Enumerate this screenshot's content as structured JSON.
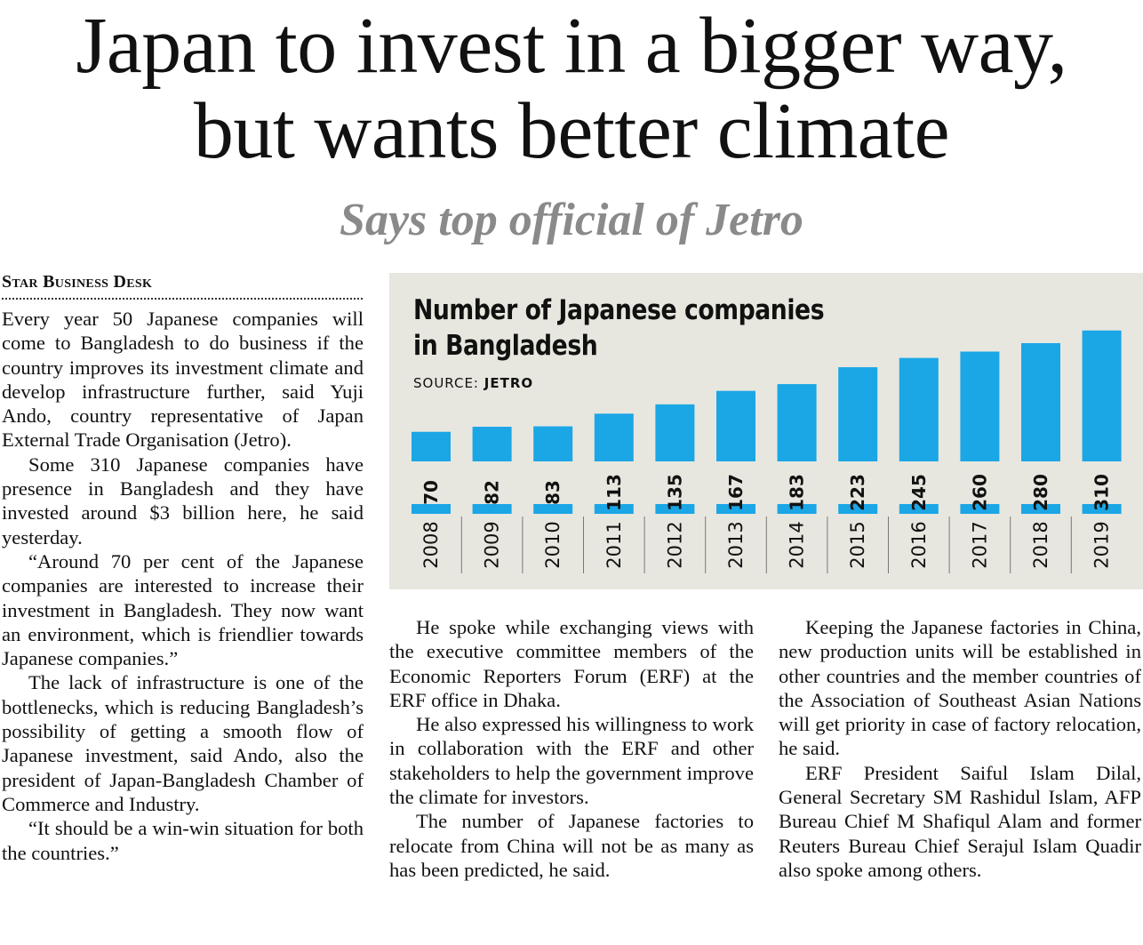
{
  "headline": {
    "line1": "Japan to invest in a bigger way,",
    "line2": "but wants better climate"
  },
  "subhead": "Says top official of Jetro",
  "byline": "Star Business Desk",
  "columns": {
    "col1": [
      "Every year 50 Japanese companies will come to Bangladesh to do business if the country improves its investment climate and develop infrastructure further, said Yuji Ando, country representative of Japan External Trade Organisation (Jetro).",
      "Some 310 Japanese companies have presence in Bangladesh and they have invested around $3 billion here, he said yesterday.",
      "“Around 70 per cent of the Japanese companies are interested to increase their investment in Bangladesh. They now want an environment, which is friendlier towards Japanese companies.”",
      "The lack of infrastructure is one of the bottlenecks, which is reducing Bangladesh’s possibility of getting a smooth flow of Japanese investment, said Ando, also the president of Japan-Bangladesh Chamber of Commerce and Industry.",
      "“It should be a win-win situation for both the countries.”"
    ],
    "col2": [
      "He spoke while exchanging views with the executive committee members of the Economic Reporters Forum (ERF) at the ERF office in Dhaka.",
      "He also expressed his willingness to work in collaboration with the ERF and other stakeholders to help the government improve the climate for investors.",
      "The number of Japanese factories to relocate from China will not be as many as has been predicted, he said."
    ],
    "col3": [
      "Keeping the Japanese factories in China, new production units will be established in other countries and the member countries of the Association of Southeast Asian Nations will get priority in case of factory relocation, he said.",
      "ERF President Saiful Islam Dilal, General Secretary SM Rashidul Islam, AFP Bureau Chief M Shafiqul Alam and former Reuters Bureau Chief Serajul Islam Quadir also spoke among others."
    ]
  },
  "chart_data": {
    "type": "bar",
    "title_line1": "Number of Japanese companies",
    "title_line2": "in Bangladesh",
    "source_label": "SOURCE: ",
    "source_value": "JETRO",
    "categories": [
      "2008",
      "2009",
      "2010",
      "2011",
      "2012",
      "2013",
      "2014",
      "2015",
      "2016",
      "2017",
      "2018",
      "2019"
    ],
    "values": [
      70,
      82,
      83,
      113,
      135,
      167,
      183,
      223,
      245,
      260,
      280,
      310
    ],
    "bar_color": "#1ba6e6",
    "background_color": "#e7e7df",
    "grid": false,
    "legend": "none"
  }
}
